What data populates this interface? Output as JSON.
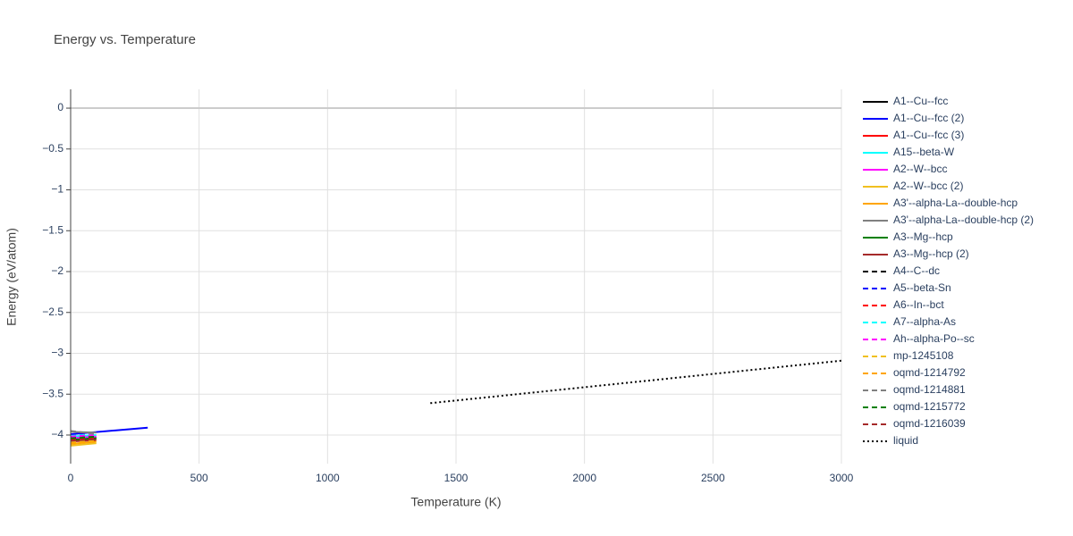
{
  "chart_data": {
    "type": "line",
    "title": "Energy vs. Temperature",
    "x_label": "Temperature (K)",
    "y_label": "Energy (eV/atom)",
    "xlim": [
      0,
      3000
    ],
    "ylim": [
      -4.35,
      0.23
    ],
    "xticks": [
      0,
      500,
      1000,
      1500,
      2000,
      2500,
      3000
    ],
    "yticks": [
      0,
      {
        "value": -0.5,
        "label": "−0.5"
      },
      {
        "value": -1,
        "label": "−1"
      },
      {
        "value": -1.5,
        "label": "−1.5"
      },
      {
        "value": -2,
        "label": "−2"
      },
      {
        "value": -2.5,
        "label": "−2.5"
      },
      {
        "value": -3,
        "label": "−3"
      },
      {
        "value": -3.5,
        "label": "−3.5"
      },
      {
        "value": -4,
        "label": "−4"
      }
    ],
    "grid": true,
    "series": [
      {
        "name": "A1--Cu--fcc",
        "color": "#000000",
        "dash": "solid",
        "x": [
          0,
          100
        ],
        "values": [
          -4.05,
          -4.03
        ]
      },
      {
        "name": "A1--Cu--fcc (2)",
        "color": "#0000ff",
        "dash": "solid",
        "x": [
          0,
          300
        ],
        "values": [
          -3.99,
          -3.91
        ]
      },
      {
        "name": "A1--Cu--fcc (3)",
        "color": "#ff0000",
        "dash": "solid",
        "x": [
          0,
          100
        ],
        "values": [
          -4.07,
          -4.05
        ]
      },
      {
        "name": "A15--beta-W",
        "color": "#00ffff",
        "dash": "solid",
        "x": [
          0,
          100
        ],
        "values": [
          -4.02,
          -4.0
        ]
      },
      {
        "name": "A2--W--bcc",
        "color": "#ff00ff",
        "dash": "solid",
        "x": [
          0,
          100
        ],
        "values": [
          -4.04,
          -4.02
        ]
      },
      {
        "name": "A2--W--bcc (2)",
        "color": "#f0c020",
        "dash": "solid",
        "x": [
          0,
          100
        ],
        "values": [
          -4.13,
          -4.1
        ]
      },
      {
        "name": "A3'--alpha-La--double-hcp",
        "color": "#ffa500",
        "dash": "solid",
        "x": [
          0,
          100
        ],
        "values": [
          -4.11,
          -4.08
        ]
      },
      {
        "name": "A3'--alpha-La--double-hcp (2)",
        "color": "#808080",
        "dash": "solid",
        "x": [
          0,
          100
        ],
        "values": [
          -3.96,
          -3.97
        ]
      },
      {
        "name": "A3--Mg--hcp",
        "color": "#008000",
        "dash": "solid",
        "x": [
          0,
          100
        ],
        "values": [
          -4.06,
          -4.04
        ]
      },
      {
        "name": "A3--Mg--hcp (2)",
        "color": "#a52a2a",
        "dash": "solid",
        "x": [
          0,
          100
        ],
        "values": [
          -4.08,
          -4.06
        ]
      },
      {
        "name": "A4--C--dc",
        "color": "#000000",
        "dash": "dash",
        "x": [
          0,
          100
        ],
        "values": [
          -4.03,
          -4.01
        ]
      },
      {
        "name": "A5--beta-Sn",
        "color": "#0000ff",
        "dash": "dash",
        "x": [
          0,
          100
        ],
        "values": [
          -4.0,
          -3.99
        ]
      },
      {
        "name": "A6--In--bct",
        "color": "#ff0000",
        "dash": "dash",
        "x": [
          0,
          100
        ],
        "values": [
          -4.06,
          -4.04
        ]
      },
      {
        "name": "A7--alpha-As",
        "color": "#00ffff",
        "dash": "dash",
        "x": [
          0,
          100
        ],
        "values": [
          -4.01,
          -3.99
        ]
      },
      {
        "name": "Ah--alpha-Po--sc",
        "color": "#ff00ff",
        "dash": "dash",
        "x": [
          0,
          100
        ],
        "values": [
          -4.02,
          -4.0
        ]
      },
      {
        "name": "mp-1245108",
        "color": "#f0c020",
        "dash": "dash",
        "x": [
          0,
          100
        ],
        "values": [
          -4.09,
          -4.07
        ]
      },
      {
        "name": "oqmd-1214792",
        "color": "#ffa500",
        "dash": "dash",
        "x": [
          0,
          100
        ],
        "values": [
          -4.1,
          -4.08
        ]
      },
      {
        "name": "oqmd-1214881",
        "color": "#808080",
        "dash": "dash",
        "x": [
          0,
          100
        ],
        "values": [
          -3.95,
          -3.99
        ]
      },
      {
        "name": "oqmd-1215772",
        "color": "#008000",
        "dash": "dash",
        "x": [
          0,
          100
        ],
        "values": [
          -4.04,
          -4.02
        ]
      },
      {
        "name": "oqmd-1216039",
        "color": "#a52a2a",
        "dash": "dash",
        "x": [
          0,
          100
        ],
        "values": [
          -4.07,
          -4.05
        ]
      },
      {
        "name": "liquid",
        "color": "#000000",
        "dash": "dot",
        "x": [
          1400,
          3000
        ],
        "values": [
          -3.61,
          -3.09
        ]
      }
    ]
  }
}
